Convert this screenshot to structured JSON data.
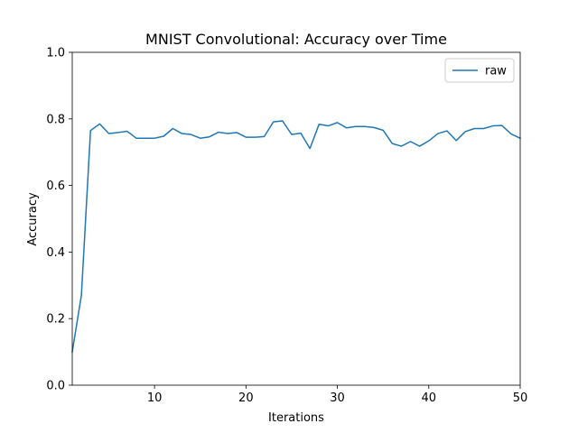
{
  "chart_data": {
    "type": "line",
    "title": "MNIST Convolutional: Accuracy over Time",
    "xlabel": "Iterations",
    "ylabel": "Accuracy",
    "xlim": [
      1,
      50
    ],
    "ylim": [
      0.0,
      1.0
    ],
    "x_ticks": [
      10,
      20,
      30,
      40,
      50
    ],
    "y_ticks": [
      0.0,
      0.2,
      0.4,
      0.6,
      0.8,
      1.0
    ],
    "y_tick_labels": [
      "0.0",
      "0.2",
      "0.4",
      "0.6",
      "0.8",
      "1.0"
    ],
    "grid": false,
    "legend_position": "upper-right",
    "series": [
      {
        "name": "raw",
        "color": "#1f77b4",
        "x": [
          1,
          2,
          3,
          4,
          5,
          6,
          7,
          8,
          9,
          10,
          11,
          12,
          13,
          14,
          15,
          16,
          17,
          18,
          19,
          20,
          21,
          22,
          23,
          24,
          25,
          26,
          27,
          28,
          29,
          30,
          31,
          32,
          33,
          34,
          35,
          36,
          37,
          38,
          39,
          40,
          41,
          42,
          43,
          44,
          45,
          46,
          47,
          48,
          49,
          50
        ],
        "y": [
          0.1,
          0.27,
          0.765,
          0.785,
          0.756,
          0.759,
          0.763,
          0.742,
          0.742,
          0.742,
          0.748,
          0.771,
          0.756,
          0.753,
          0.742,
          0.746,
          0.76,
          0.756,
          0.759,
          0.745,
          0.745,
          0.747,
          0.791,
          0.794,
          0.753,
          0.757,
          0.711,
          0.784,
          0.779,
          0.789,
          0.773,
          0.777,
          0.777,
          0.774,
          0.766,
          0.726,
          0.718,
          0.732,
          0.718,
          0.734,
          0.756,
          0.764,
          0.735,
          0.762,
          0.771,
          0.771,
          0.779,
          0.78,
          0.755,
          0.742
        ]
      }
    ]
  }
}
